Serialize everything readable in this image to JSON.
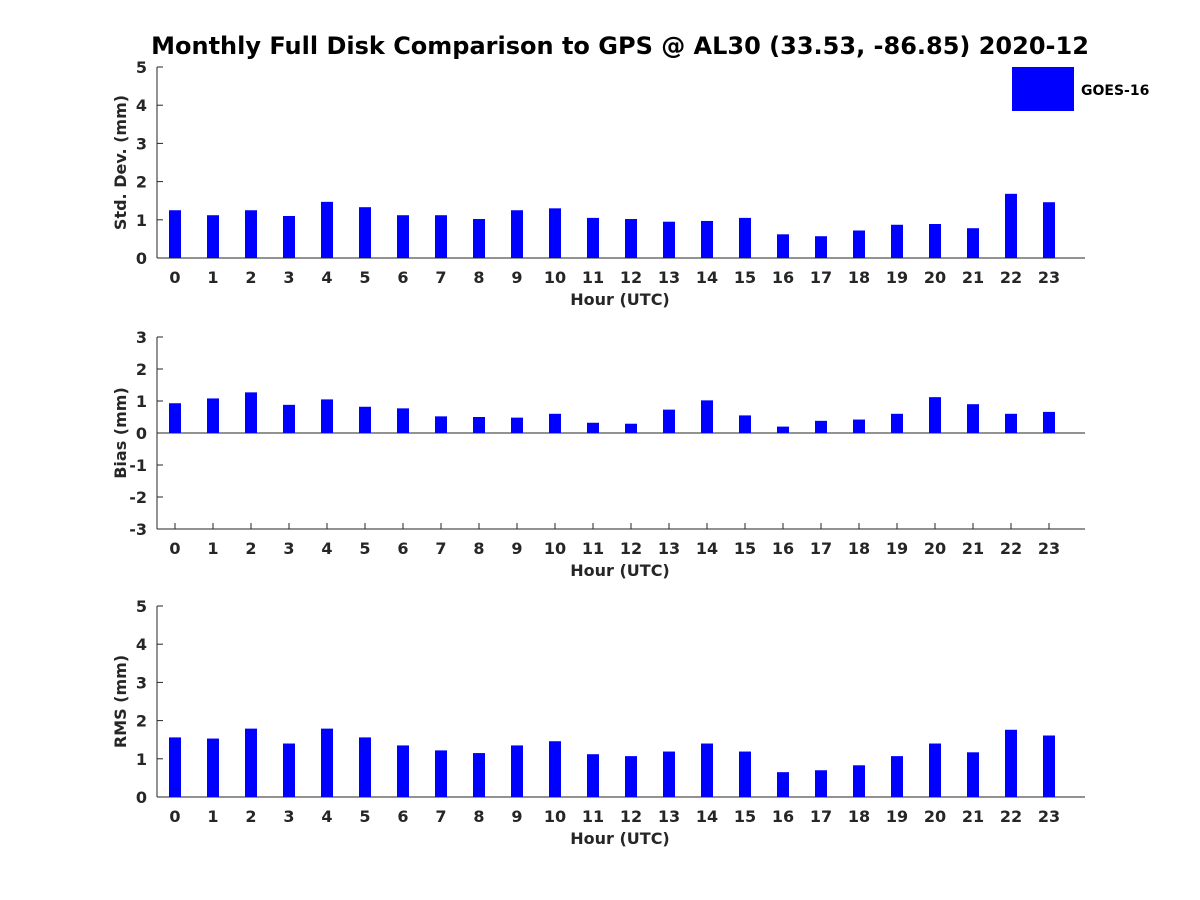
{
  "chart_data": {
    "title": "Monthly Full Disk Comparison to GPS @ AL30 (33.53, -86.85) 2020-12",
    "legend": {
      "label": "GOES-16",
      "color": "#0000ff",
      "placement": "top-right"
    },
    "bar_color": "#0000ff",
    "panels": [
      {
        "type": "bar",
        "xlabel": "Hour (UTC)",
        "ylabel": "Std. Dev. (mm)",
        "ylim": [
          0,
          5
        ],
        "yticks": [
          0,
          1,
          2,
          3,
          4,
          5
        ],
        "categories": [
          "0",
          "1",
          "2",
          "3",
          "4",
          "5",
          "6",
          "7",
          "8",
          "9",
          "10",
          "11",
          "12",
          "13",
          "14",
          "15",
          "16",
          "17",
          "18",
          "19",
          "20",
          "21",
          "22",
          "23"
        ],
        "series": [
          {
            "name": "GOES-16",
            "values": [
              1.25,
              1.12,
              1.25,
              1.1,
              1.47,
              1.33,
              1.12,
              1.12,
              1.02,
              1.25,
              1.3,
              1.05,
              1.02,
              0.95,
              0.97,
              1.05,
              0.62,
              0.57,
              0.72,
              0.87,
              0.89,
              0.78,
              1.68,
              1.46
            ]
          }
        ]
      },
      {
        "type": "bar",
        "xlabel": "Hour (UTC)",
        "ylabel": "Bias (mm)",
        "ylim": [
          -3,
          3
        ],
        "yticks": [
          -3,
          -2,
          -1,
          0,
          1,
          2,
          3
        ],
        "categories": [
          "0",
          "1",
          "2",
          "3",
          "4",
          "5",
          "6",
          "7",
          "8",
          "9",
          "10",
          "11",
          "12",
          "13",
          "14",
          "15",
          "16",
          "17",
          "18",
          "19",
          "20",
          "21",
          "22",
          "23"
        ],
        "series": [
          {
            "name": "GOES-16",
            "values": [
              0.93,
              1.08,
              1.27,
              0.88,
              1.05,
              0.82,
              0.77,
              0.52,
              0.5,
              0.48,
              0.6,
              0.32,
              0.29,
              0.73,
              1.02,
              0.55,
              0.2,
              0.38,
              0.42,
              0.6,
              1.12,
              0.9,
              0.6,
              0.66
            ]
          }
        ]
      },
      {
        "type": "bar",
        "xlabel": "Hour (UTC)",
        "ylabel": "RMS (mm)",
        "ylim": [
          0,
          5
        ],
        "yticks": [
          0,
          1,
          2,
          3,
          4,
          5
        ],
        "categories": [
          "0",
          "1",
          "2",
          "3",
          "4",
          "5",
          "6",
          "7",
          "8",
          "9",
          "10",
          "11",
          "12",
          "13",
          "14",
          "15",
          "16",
          "17",
          "18",
          "19",
          "20",
          "21",
          "22",
          "23"
        ],
        "series": [
          {
            "name": "GOES-16",
            "values": [
              1.56,
              1.53,
              1.79,
              1.4,
              1.79,
              1.56,
              1.35,
              1.22,
              1.15,
              1.35,
              1.46,
              1.12,
              1.07,
              1.19,
              1.4,
              1.19,
              0.65,
              0.7,
              0.83,
              1.07,
              1.4,
              1.17,
              1.76,
              1.61
            ]
          }
        ]
      }
    ]
  }
}
